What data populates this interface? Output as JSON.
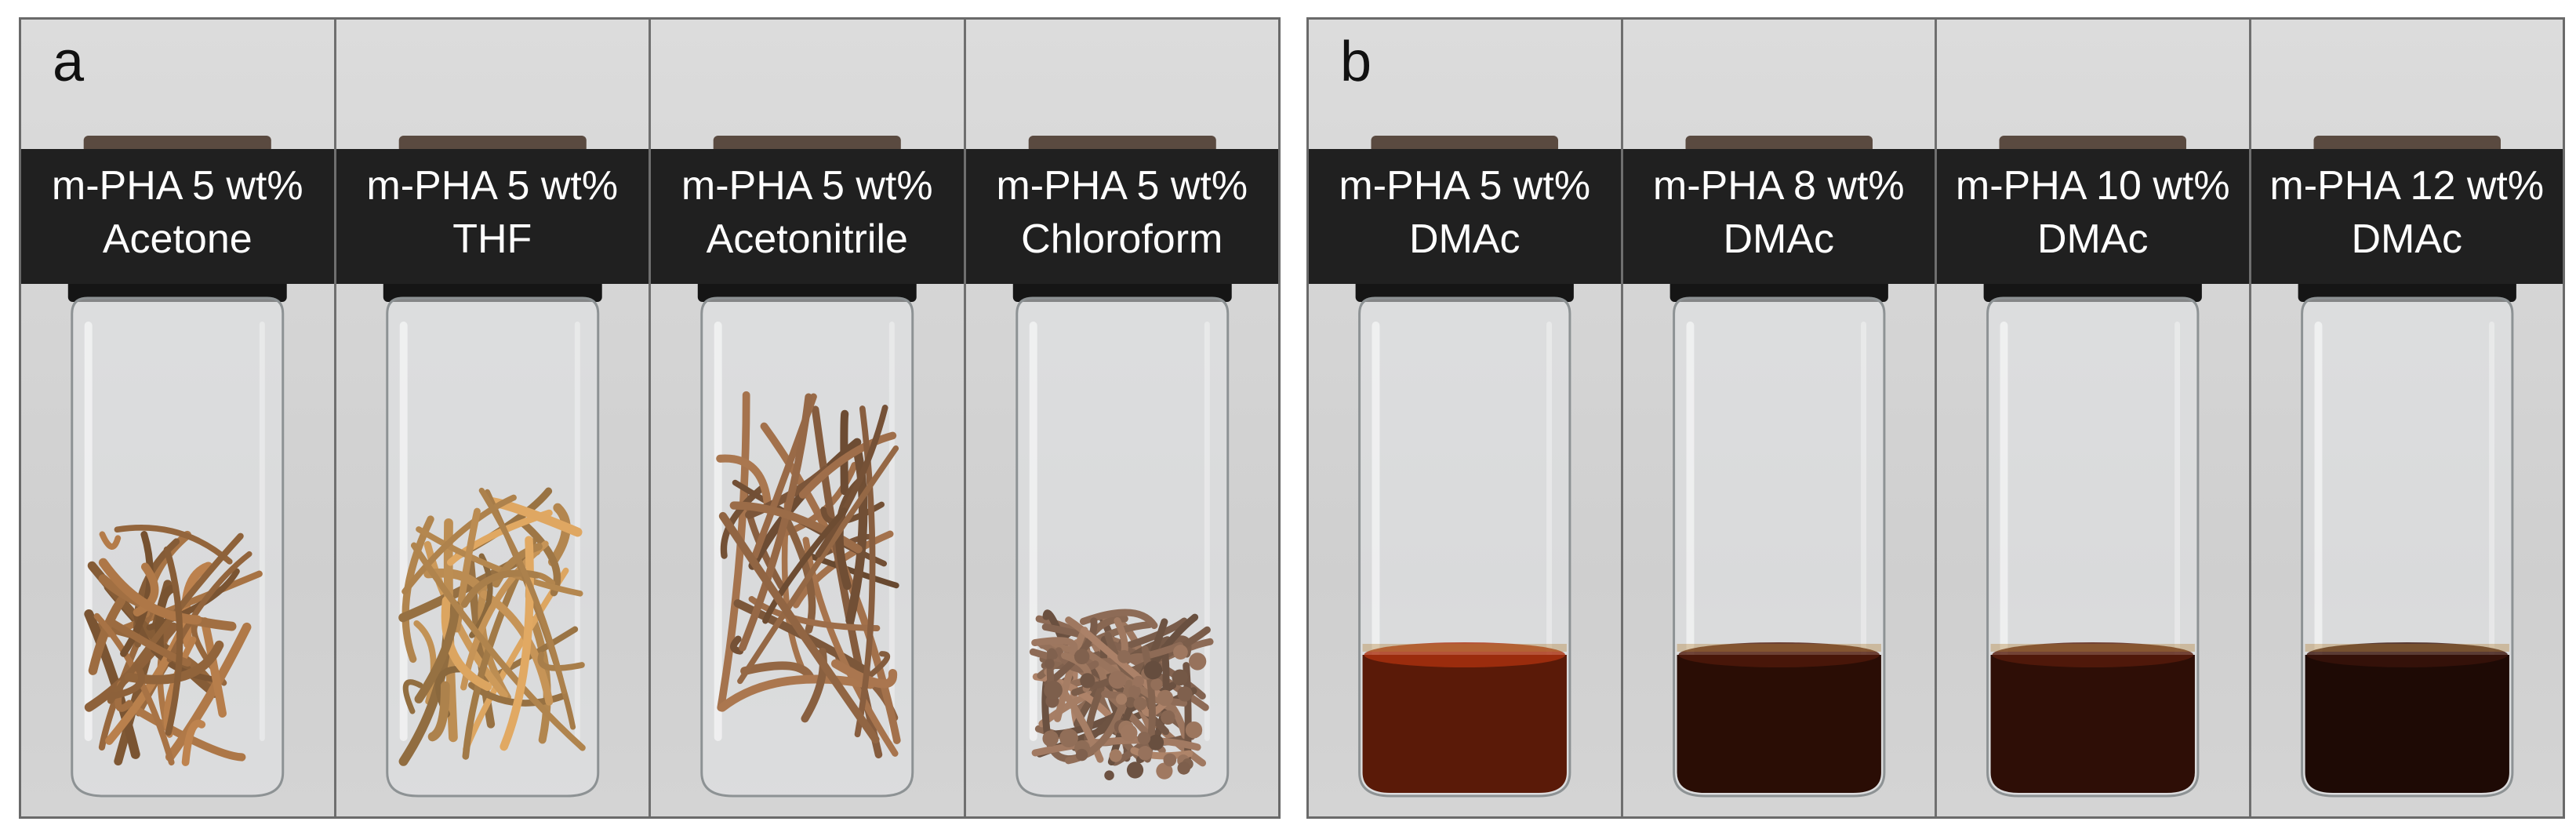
{
  "panels": [
    {
      "label": "a",
      "samples": [
        {
          "line1": "m-PHA 5 wt%",
          "line2": "Acetone",
          "content": "fibers",
          "color": "#9a6a3f"
        },
        {
          "line1": "m-PHA 5 wt%",
          "line2": "THF",
          "content": "fibers",
          "color": "#b4874f"
        },
        {
          "line1": "m-PHA 5 wt%",
          "line2": "Acetonitrile",
          "content": "fibers",
          "color": "#8a6040"
        },
        {
          "line1": "m-PHA 5 wt%",
          "line2": "Chloroform",
          "content": "fibers",
          "color": "#8c6a55"
        }
      ]
    },
    {
      "label": "b",
      "samples": [
        {
          "line1": "m-PHA 5 wt%",
          "line2": "DMAc",
          "content": "solution",
          "color": "#5a1a08"
        },
        {
          "line1": "m-PHA 8 wt%",
          "line2": "DMAc",
          "content": "solution",
          "color": "#2a0d05"
        },
        {
          "line1": "m-PHA 10 wt%",
          "line2": "DMAc",
          "content": "solution",
          "color": "#2e0e06"
        },
        {
          "line1": "m-PHA 12 wt%",
          "line2": "DMAc",
          "content": "solution",
          "color": "#1e0a05"
        }
      ]
    }
  ]
}
